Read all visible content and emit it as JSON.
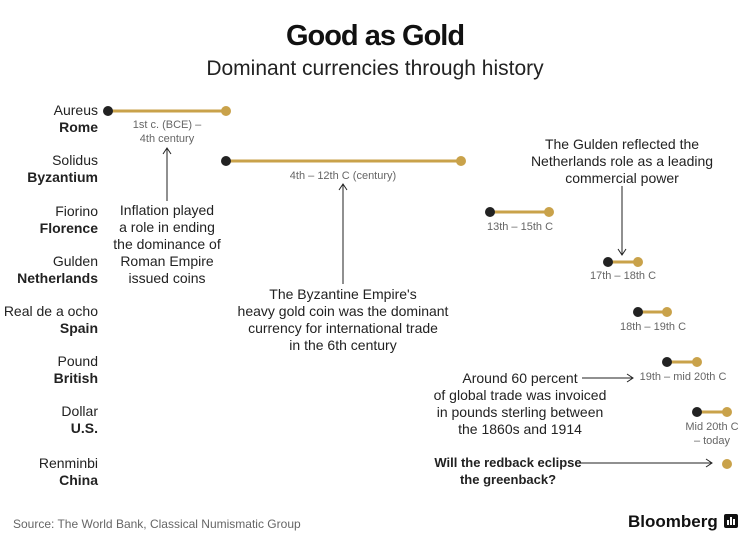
{
  "header": {
    "title": "Good as Gold",
    "subtitle": "Dominant currencies through history"
  },
  "chart_data": {
    "type": "timeline",
    "colors": {
      "start": "#222222",
      "end": "#c9a24a",
      "text": "#222222",
      "range_text": "#666666"
    },
    "rows": [
      {
        "currency": "Aureus",
        "place": "Rome",
        "range_label": [
          "1st c. (BCE) –",
          "4th century"
        ]
      },
      {
        "currency": "Solidus",
        "place": "Byzantium",
        "range_label": [
          "4th – 12th C (century)"
        ]
      },
      {
        "currency": "Fiorino",
        "place": "Florence",
        "range_label": [
          "13th – 15th C"
        ]
      },
      {
        "currency": "Gulden",
        "place": "Netherlands",
        "range_label": [
          "17th – 18th C"
        ]
      },
      {
        "currency": "Real de a ocho",
        "place": "Spain",
        "range_label": [
          "18th – 19th C"
        ]
      },
      {
        "currency": "Pound",
        "place": "British",
        "range_label": [
          "19th – mid 20th C"
        ]
      },
      {
        "currency": "Dollar",
        "place": "U.S.",
        "range_label": [
          "Mid 20th C",
          "– today"
        ]
      },
      {
        "currency": "Renminbi",
        "place": "China",
        "range_label": []
      }
    ],
    "annotations": [
      {
        "lines": [
          "Inflation played",
          "a role in ending",
          "the dominance of",
          "Roman Empire",
          "issued coins"
        ]
      },
      {
        "lines": [
          "The Byzantine Empire's",
          "heavy gold coin was the dominant",
          "currency for international trade",
          "in the 6th century"
        ]
      },
      {
        "lines": [
          "The Gulden reflected the",
          "Netherlands role as a leading",
          "commercial power"
        ]
      },
      {
        "lines": [
          "Around 60 percent",
          "of global trade was invoiced",
          "in pounds sterling between",
          "the 1860s and 1914"
        ]
      },
      {
        "lines": [
          "Will the redback eclipse",
          "the greenback?"
        ]
      }
    ]
  },
  "footer": {
    "source": "Source: The World Bank, Classical Numismatic Group",
    "brand": "Bloomberg"
  }
}
